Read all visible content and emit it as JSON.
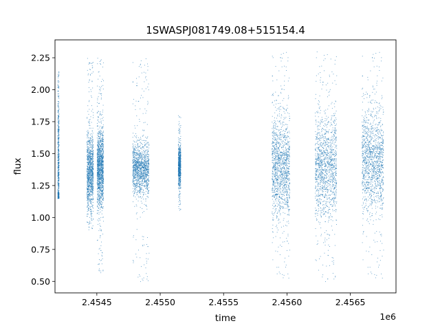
{
  "chart_data": {
    "type": "scatter",
    "title": "1SWASPJ081749.08+515154.4",
    "xlabel": "time",
    "ylabel": "flux",
    "x_offset_label": "1e6",
    "xlim": [
      2454170,
      2456860
    ],
    "ylim": [
      0.41,
      2.39
    ],
    "x_ticks": [
      2454500,
      2455000,
      2455500,
      2456000,
      2456500
    ],
    "x_tick_labels": [
      "2.4545",
      "2.4550",
      "2.4555",
      "2.4560",
      "2.4565"
    ],
    "y_ticks": [
      0.5,
      0.75,
      1.0,
      1.25,
      1.5,
      1.75,
      2.0,
      2.25
    ],
    "y_tick_labels": [
      "0.50",
      "0.75",
      "1.00",
      "1.25",
      "1.50",
      "1.75",
      "2.00",
      "2.25"
    ],
    "grid": false,
    "marker_color": "#1f77b4",
    "observing_seasons": [
      {
        "x_start": 2454190,
        "x_end": 2454200,
        "y_center": 1.45,
        "y_spread": 0.3,
        "y_min": 1.15,
        "y_max": 2.15,
        "density": 0.4
      },
      {
        "x_start": 2454420,
        "x_end": 2454470,
        "y_center": 1.35,
        "y_spread": 0.15,
        "y_min": 0.9,
        "y_max": 2.25,
        "density": 0.8
      },
      {
        "x_start": 2454500,
        "x_end": 2454550,
        "y_center": 1.4,
        "y_spread": 0.15,
        "y_min": 0.55,
        "y_max": 2.25,
        "density": 1.0
      },
      {
        "x_start": 2454780,
        "x_end": 2454910,
        "y_center": 1.38,
        "y_spread": 0.1,
        "y_min": 0.5,
        "y_max": 2.25,
        "density": 1.0
      },
      {
        "x_start": 2455140,
        "x_end": 2455160,
        "y_center": 1.4,
        "y_spread": 0.08,
        "y_min": 1.05,
        "y_max": 1.8,
        "density": 0.5
      },
      {
        "x_start": 2455880,
        "x_end": 2456020,
        "y_center": 1.4,
        "y_spread": 0.2,
        "y_min": 0.52,
        "y_max": 2.3,
        "density": 1.0
      },
      {
        "x_start": 2456220,
        "x_end": 2456390,
        "y_center": 1.4,
        "y_spread": 0.2,
        "y_min": 0.5,
        "y_max": 2.3,
        "density": 1.0
      },
      {
        "x_start": 2456590,
        "x_end": 2456760,
        "y_center": 1.45,
        "y_spread": 0.2,
        "y_min": 0.52,
        "y_max": 2.3,
        "density": 1.0
      }
    ]
  }
}
